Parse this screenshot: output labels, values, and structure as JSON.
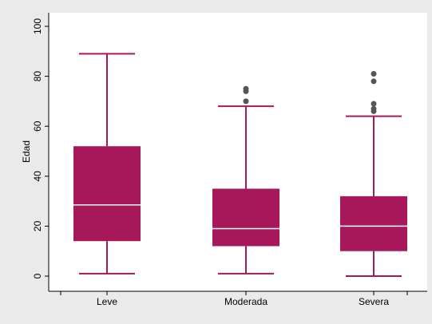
{
  "chart_data": {
    "type": "box",
    "title": "",
    "xlabel": "",
    "ylabel": "Edad",
    "ylim": [
      0,
      100
    ],
    "yticks": [
      0,
      20,
      40,
      60,
      80,
      100
    ],
    "grid": false,
    "legend": "none",
    "colors": {
      "box": "#a6185a",
      "median": "#ffffff",
      "outlier": "#555555",
      "plot_bg": "#ffffff",
      "outer_bg": "#eaeaea"
    },
    "categories": [
      "Leve",
      "Moderada",
      "Severa"
    ],
    "boxes": [
      {
        "category": "Leve",
        "whisker_low": 1,
        "q1": 14,
        "median": 28.5,
        "q3": 52,
        "whisker_high": 89,
        "outliers": []
      },
      {
        "category": "Moderada",
        "whisker_low": 1,
        "q1": 12,
        "median": 19,
        "q3": 35,
        "whisker_high": 68,
        "outliers": [
          70,
          74,
          75
        ]
      },
      {
        "category": "Severa",
        "whisker_low": 0,
        "q1": 10,
        "median": 20,
        "q3": 32,
        "whisker_high": 64,
        "outliers": [
          66,
          67,
          69,
          78,
          81
        ]
      }
    ]
  }
}
